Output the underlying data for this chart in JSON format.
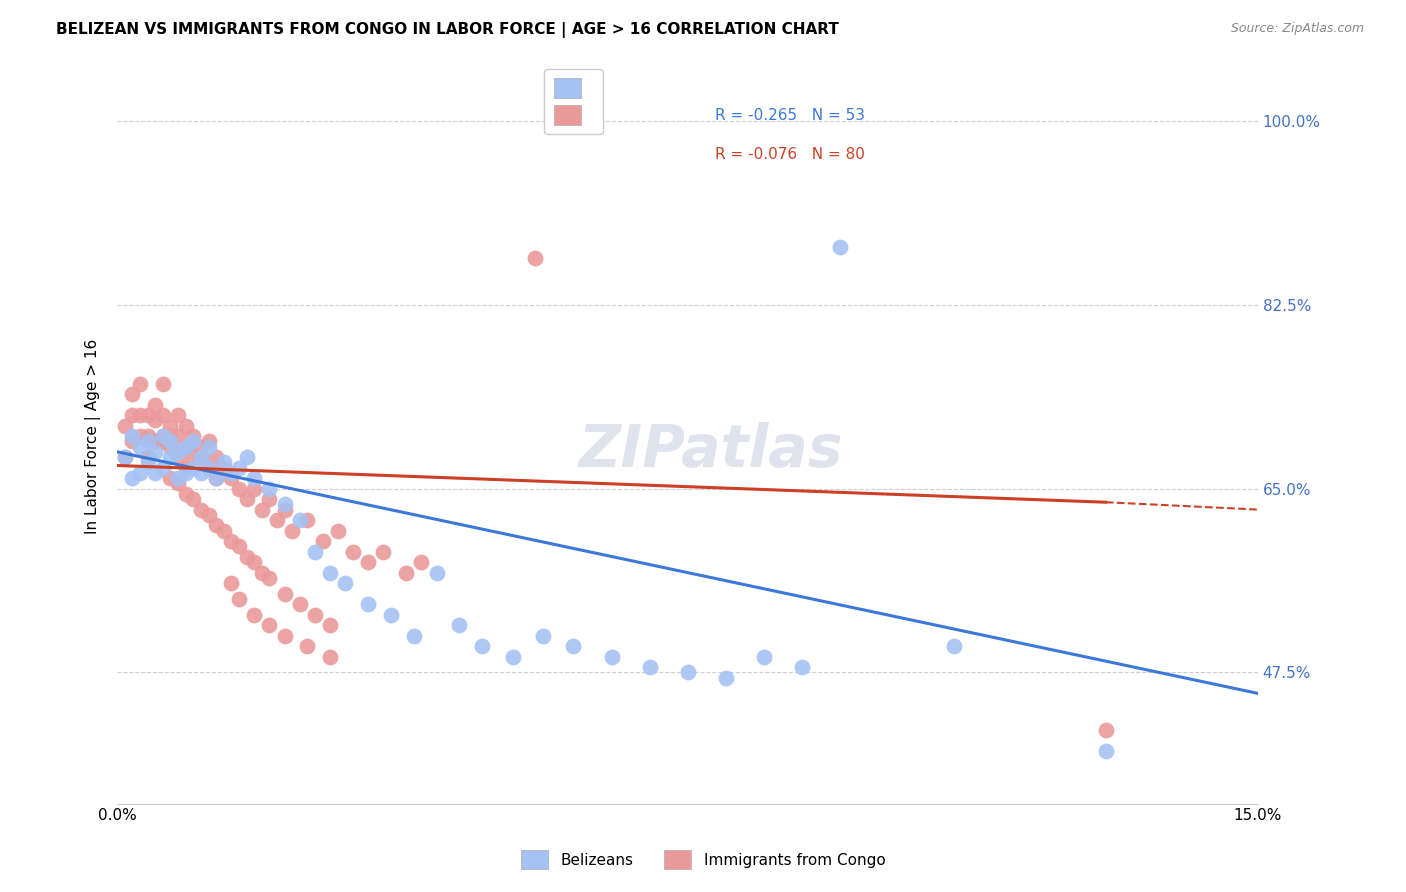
{
  "title": "BELIZEAN VS IMMIGRANTS FROM CONGO IN LABOR FORCE | AGE > 16 CORRELATION CHART",
  "source": "Source: ZipAtlas.com",
  "ylabel": "In Labor Force | Age > 16",
  "xlim": [
    0.0,
    0.15
  ],
  "ylim": [
    0.35,
    1.05
  ],
  "ytick_vals": [
    0.475,
    0.65,
    0.825,
    1.0
  ],
  "ytick_labels": [
    "47.5%",
    "65.0%",
    "82.5%",
    "100.0%"
  ],
  "watermark": "ZIPatlas",
  "blue_color": "#a4c2f4",
  "pink_color": "#ea9999",
  "blue_line_color": "#3c78d8",
  "pink_line_color": "#cc4125",
  "R_blue": -0.265,
  "N_blue": 53,
  "R_pink": -0.076,
  "N_pink": 80,
  "blue_line_x0": 0.0,
  "blue_line_y0": 0.685,
  "blue_line_x1": 0.15,
  "blue_line_y1": 0.455,
  "pink_line_x0": 0.0,
  "pink_line_y0": 0.672,
  "pink_line_x1_solid": 0.13,
  "pink_line_y1_solid": 0.637,
  "pink_line_x1_dash": 0.15,
  "pink_line_y1_dash": 0.63,
  "belize_x": [
    0.001,
    0.002,
    0.002,
    0.003,
    0.003,
    0.004,
    0.004,
    0.005,
    0.005,
    0.006,
    0.006,
    0.007,
    0.007,
    0.008,
    0.008,
    0.009,
    0.009,
    0.01,
    0.01,
    0.011,
    0.011,
    0.012,
    0.012,
    0.013,
    0.014,
    0.015,
    0.016,
    0.017,
    0.018,
    0.02,
    0.022,
    0.024,
    0.026,
    0.028,
    0.03,
    0.033,
    0.036,
    0.039,
    0.042,
    0.045,
    0.048,
    0.052,
    0.056,
    0.06,
    0.065,
    0.07,
    0.075,
    0.08,
    0.085,
    0.09,
    0.095,
    0.11,
    0.13
  ],
  "belize_y": [
    0.68,
    0.66,
    0.7,
    0.665,
    0.69,
    0.675,
    0.695,
    0.665,
    0.685,
    0.67,
    0.7,
    0.68,
    0.695,
    0.66,
    0.685,
    0.665,
    0.69,
    0.67,
    0.695,
    0.665,
    0.68,
    0.67,
    0.69,
    0.66,
    0.675,
    0.665,
    0.67,
    0.68,
    0.66,
    0.65,
    0.635,
    0.62,
    0.59,
    0.57,
    0.56,
    0.54,
    0.53,
    0.51,
    0.57,
    0.52,
    0.5,
    0.49,
    0.51,
    0.5,
    0.49,
    0.48,
    0.475,
    0.47,
    0.49,
    0.48,
    0.88,
    0.5,
    0.4
  ],
  "congo_x": [
    0.001,
    0.001,
    0.002,
    0.002,
    0.002,
    0.003,
    0.003,
    0.003,
    0.004,
    0.004,
    0.004,
    0.005,
    0.005,
    0.005,
    0.006,
    0.006,
    0.006,
    0.006,
    0.007,
    0.007,
    0.007,
    0.008,
    0.008,
    0.008,
    0.009,
    0.009,
    0.009,
    0.01,
    0.01,
    0.011,
    0.011,
    0.012,
    0.012,
    0.013,
    0.013,
    0.014,
    0.015,
    0.016,
    0.017,
    0.018,
    0.019,
    0.02,
    0.021,
    0.022,
    0.023,
    0.025,
    0.027,
    0.029,
    0.031,
    0.033,
    0.035,
    0.038,
    0.04,
    0.015,
    0.016,
    0.018,
    0.02,
    0.022,
    0.025,
    0.028,
    0.007,
    0.008,
    0.009,
    0.01,
    0.011,
    0.012,
    0.013,
    0.014,
    0.015,
    0.016,
    0.017,
    0.018,
    0.019,
    0.02,
    0.022,
    0.024,
    0.026,
    0.028,
    0.055,
    0.13
  ],
  "congo_y": [
    0.68,
    0.71,
    0.695,
    0.72,
    0.74,
    0.7,
    0.72,
    0.75,
    0.7,
    0.72,
    0.68,
    0.715,
    0.695,
    0.73,
    0.7,
    0.72,
    0.695,
    0.75,
    0.71,
    0.7,
    0.69,
    0.72,
    0.7,
    0.68,
    0.71,
    0.69,
    0.67,
    0.7,
    0.68,
    0.69,
    0.68,
    0.695,
    0.67,
    0.68,
    0.66,
    0.67,
    0.66,
    0.65,
    0.64,
    0.65,
    0.63,
    0.64,
    0.62,
    0.63,
    0.61,
    0.62,
    0.6,
    0.61,
    0.59,
    0.58,
    0.59,
    0.57,
    0.58,
    0.56,
    0.545,
    0.53,
    0.52,
    0.51,
    0.5,
    0.49,
    0.66,
    0.655,
    0.645,
    0.64,
    0.63,
    0.625,
    0.615,
    0.61,
    0.6,
    0.595,
    0.585,
    0.58,
    0.57,
    0.565,
    0.55,
    0.54,
    0.53,
    0.52,
    0.87,
    0.42
  ]
}
